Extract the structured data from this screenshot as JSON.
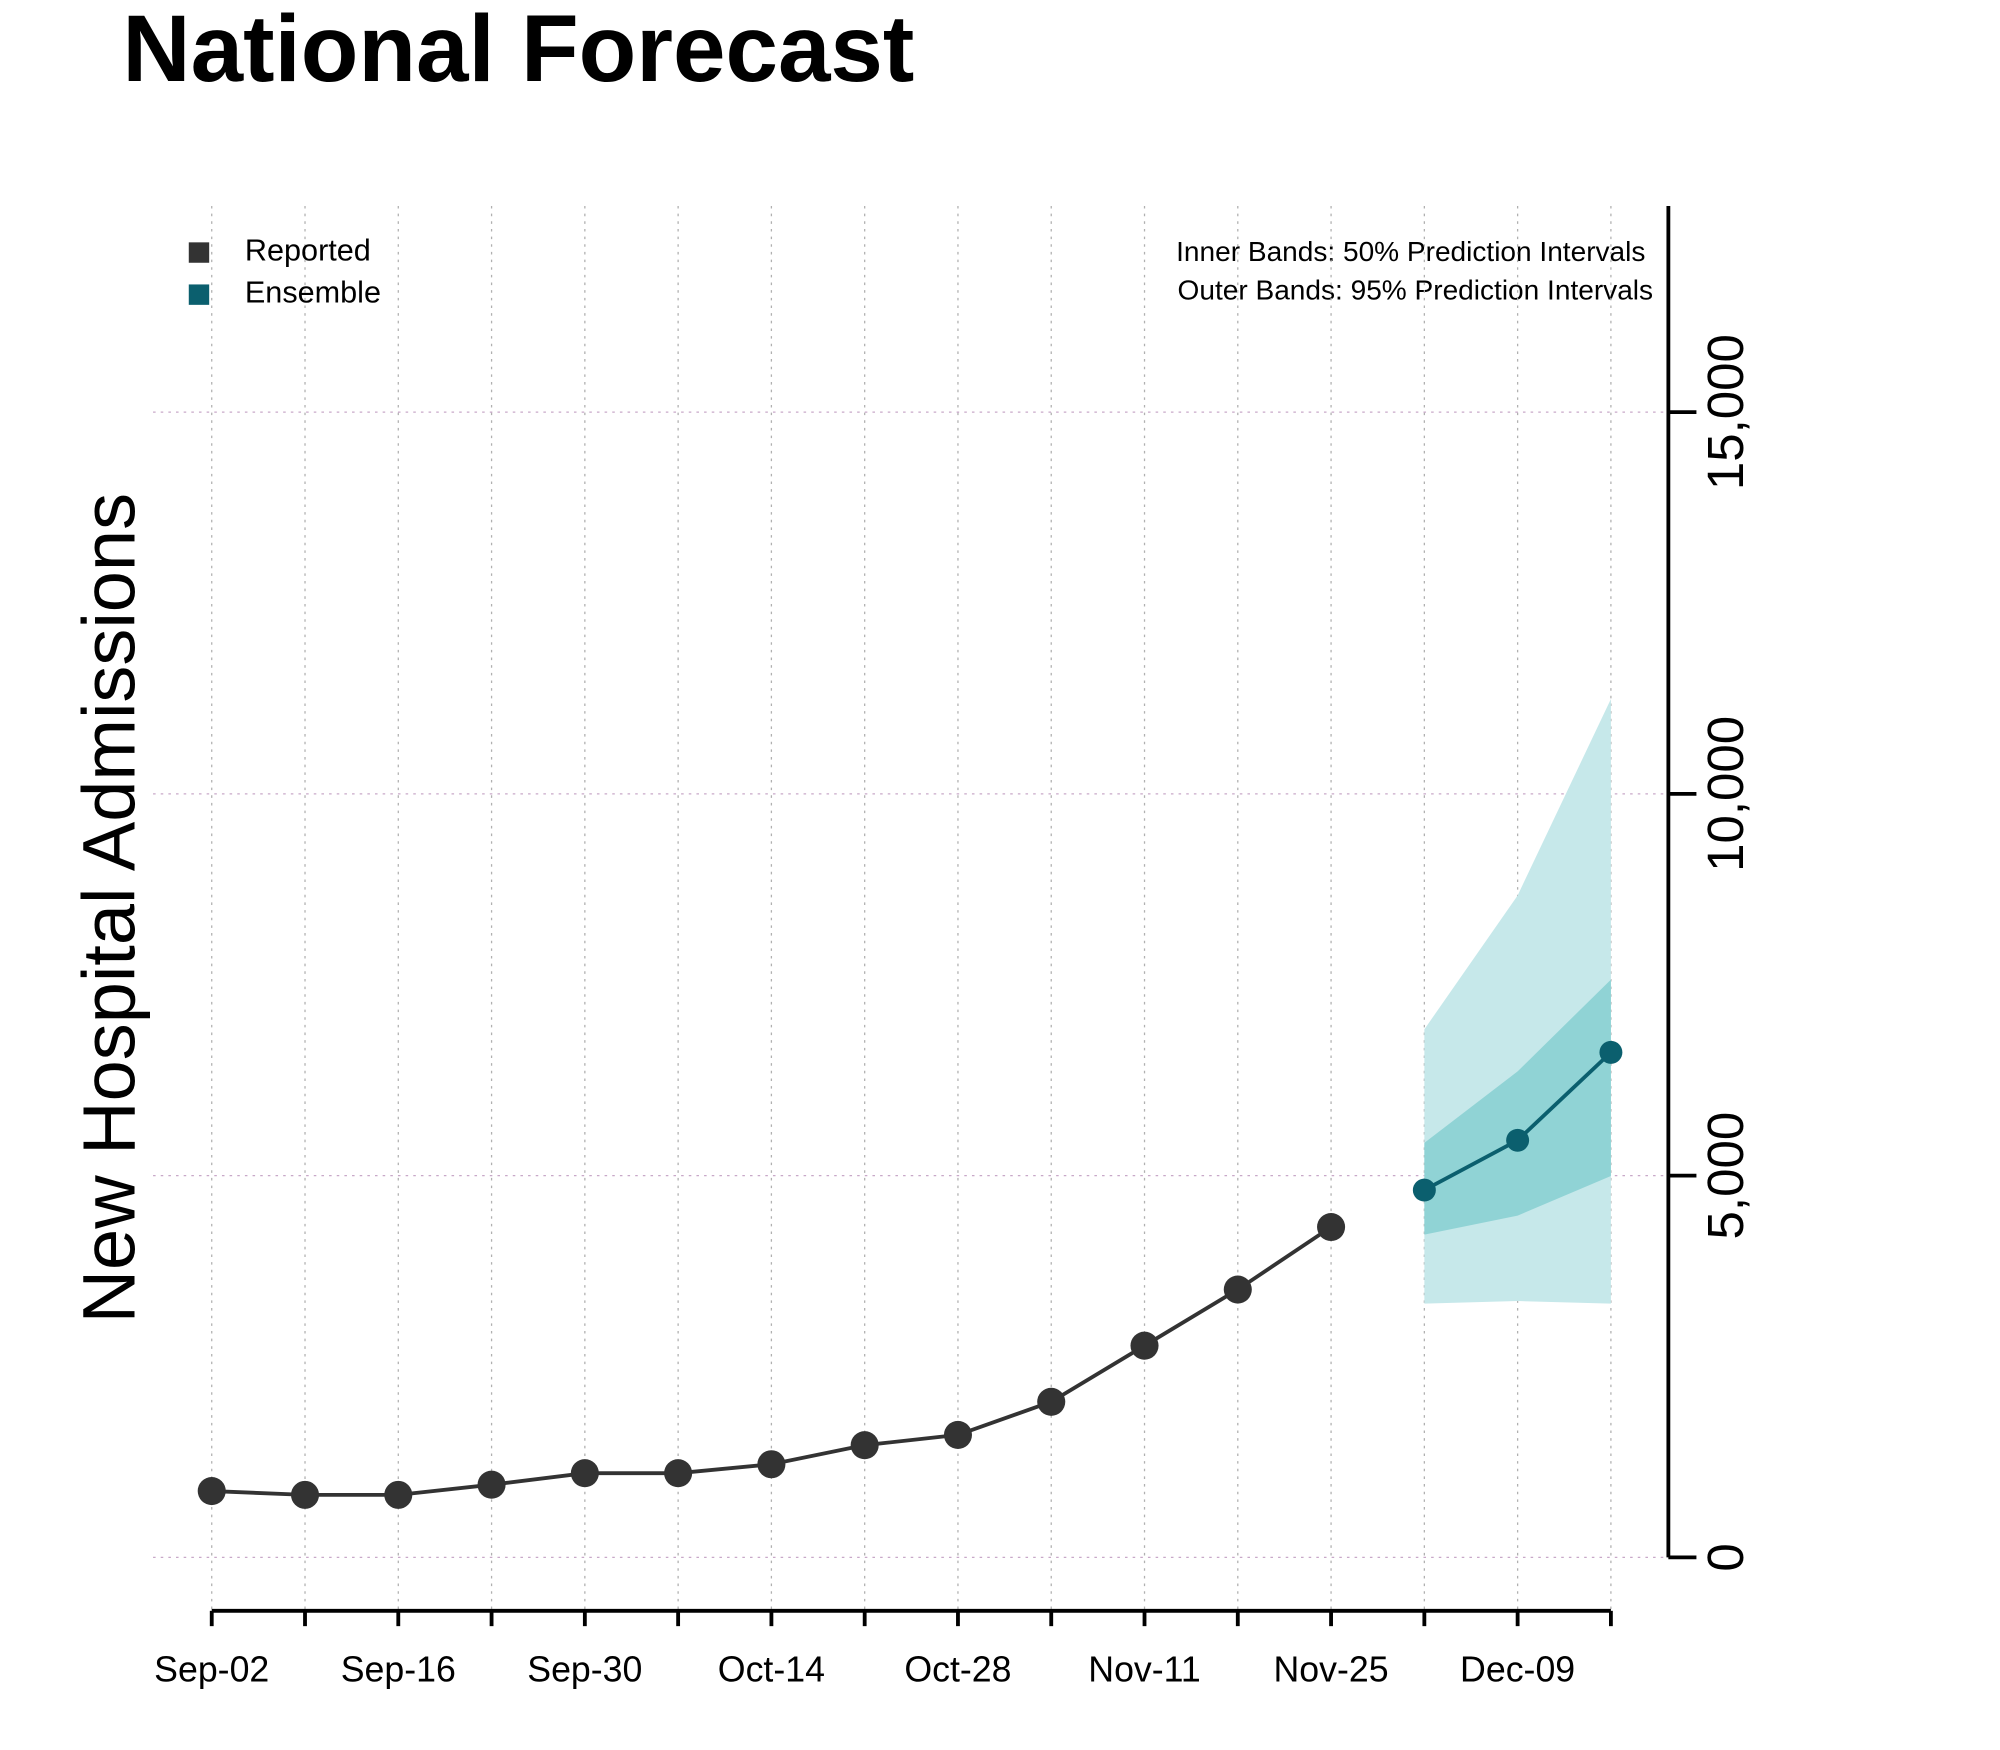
{
  "chart_data": {
    "type": "line",
    "title": "National Forecast",
    "y_label": "New Hospital Admissions",
    "annotations": [
      "Inner Bands: 50% Prediction Intervals",
      "Outer Bands: 95% Prediction Intervals"
    ],
    "categories": [
      "Sep-02",
      null,
      "Sep-16",
      null,
      "Sep-30",
      null,
      "Oct-14",
      null,
      "Oct-28",
      null,
      "Nov-11",
      null,
      "Nov-25",
      null,
      "Dec-09",
      null
    ],
    "series": [
      {
        "name": "Reported",
        "color": "#333333",
        "values": [
          869,
          819,
          819,
          952,
          1103,
          1103,
          1220,
          1470,
          1604,
          2038,
          2773,
          3508,
          4327,
          null,
          null,
          null
        ]
      },
      {
        "name": "Ensemble",
        "color": "#0b5f6e",
        "values": [
          null,
          null,
          null,
          null,
          null,
          null,
          null,
          null,
          null,
          null,
          null,
          null,
          null,
          4811,
          5463,
          6615
        ]
      }
    ],
    "outer_band": {
      "color": "#c6e8ea",
      "lower": [
        null,
        null,
        null,
        null,
        null,
        null,
        null,
        null,
        null,
        null,
        null,
        null,
        null,
        3324,
        3358,
        3324
      ],
      "upper": [
        null,
        null,
        null,
        null,
        null,
        null,
        null,
        null,
        null,
        null,
        null,
        null,
        null,
        6916,
        8670,
        11243
      ]
    },
    "inner_band": {
      "color": "#90d3d5",
      "lower": [
        null,
        null,
        null,
        null,
        null,
        null,
        null,
        null,
        null,
        null,
        null,
        null,
        null,
        4227,
        4477,
        4995
      ],
      "upper": [
        null,
        null,
        null,
        null,
        null,
        null,
        null,
        null,
        null,
        null,
        null,
        null,
        null,
        5430,
        6366,
        7568
      ]
    },
    "ylim": [
      -700,
      17700
    ],
    "yticks": [
      0,
      {
        "value": 5000,
        "label": "5,000"
      },
      {
        "value": 10000,
        "label": "10,000"
      },
      {
        "value": 15000,
        "label": "15,000"
      }
    ],
    "grid": true,
    "legend": "top-left"
  }
}
